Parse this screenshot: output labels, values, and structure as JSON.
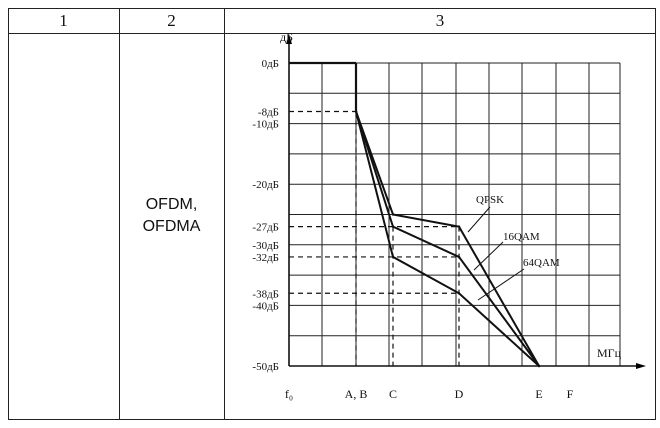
{
  "table": {
    "headers": [
      "1",
      "2",
      "3"
    ],
    "technology_lines": [
      "OFDM,",
      "OFDMA"
    ]
  },
  "chart_data": {
    "type": "line",
    "ylabel": "дБ",
    "xlabel": "МГц",
    "y_tick_labels": [
      {
        "value": 0,
        "label": "0дБ"
      },
      {
        "value": -8,
        "label": "-8дБ"
      },
      {
        "value": -10,
        "label": "-10дБ"
      },
      {
        "value": -20,
        "label": "-20дБ"
      },
      {
        "value": -27,
        "label": "-27дБ"
      },
      {
        "value": -30,
        "label": "-30дБ"
      },
      {
        "value": -32,
        "label": "-32дБ"
      },
      {
        "value": -38,
        "label": "-38дБ"
      },
      {
        "value": -40,
        "label": "-40дБ"
      },
      {
        "value": -50,
        "label": "-50дБ"
      }
    ],
    "ylim": [
      -50,
      0
    ],
    "x_points": [
      "f0",
      "A",
      "B",
      "C",
      "D",
      "E",
      "F"
    ],
    "x_tick_labels": [
      {
        "x": "f0",
        "label": "f₀"
      },
      {
        "x": "AB",
        "label": "A, B"
      },
      {
        "x": "C",
        "label": "C"
      },
      {
        "x": "D",
        "label": "D"
      },
      {
        "x": "E",
        "label": "E"
      },
      {
        "x": "F",
        "label": "F"
      }
    ],
    "flat_segment": {
      "x": [
        "f0",
        "A"
      ],
      "y": [
        0,
        0
      ]
    },
    "step_down": {
      "x": [
        "A",
        "A"
      ],
      "y": [
        0,
        -8
      ]
    },
    "series": [
      {
        "name": "QPSK",
        "x": [
          "A",
          "C",
          "D",
          "E"
        ],
        "y": [
          -8,
          -25,
          -27,
          -50
        ]
      },
      {
        "name": "16QAM",
        "x": [
          "A",
          "C",
          "D",
          "E"
        ],
        "y": [
          -8,
          -27,
          -32,
          -50
        ]
      },
      {
        "name": "64QAM",
        "x": [
          "A",
          "C",
          "D",
          "E"
        ],
        "y": [
          -8,
          -32,
          -38,
          -50
        ]
      }
    ],
    "dashed_guides": [
      -8,
      -27,
      -32,
      -38
    ],
    "grid": true
  }
}
